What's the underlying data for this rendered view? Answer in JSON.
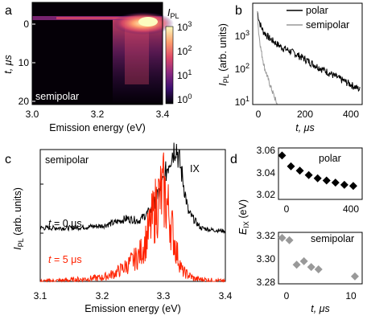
{
  "panels": {
    "a": {
      "letter": "a",
      "annotation": "semipolar",
      "xlabel": "Emission energy (eV)",
      "ylabel": "t, μs",
      "xticks": [
        "3.0",
        "3.2",
        "3.4"
      ],
      "yticks": [
        "0",
        "10",
        "20"
      ],
      "colorbar": {
        "label_main": "I",
        "label_sub": "PL",
        "ticks": [
          {
            "base": "10",
            "exp": "3"
          },
          {
            "base": "10",
            "exp": "2"
          },
          {
            "base": "10",
            "exp": "1"
          },
          {
            "base": "10",
            "exp": "0"
          }
        ],
        "colors": [
          "#000004",
          "#3b0f70",
          "#8c2981",
          "#de4968",
          "#fe9f6d",
          "#fcfdbf"
        ]
      }
    },
    "b": {
      "letter": "b",
      "legend": [
        {
          "label": "polar",
          "color": "#000000"
        },
        {
          "label": "semipolar",
          "color": "#999999"
        }
      ],
      "xlabel": "t, μs",
      "ylabel_main": "I",
      "ylabel_sub": "PL",
      "ylabel_rest": " (arb. units)",
      "xticks": [
        "0",
        "200",
        "400"
      ],
      "yticks": [
        {
          "base": "10",
          "exp": "3"
        },
        {
          "base": "10",
          "exp": "2"
        },
        {
          "base": "10",
          "exp": "1"
        }
      ]
    },
    "c": {
      "letter": "c",
      "annotation": "semipolar",
      "peak_label": "IX",
      "curve_labels": [
        {
          "italic": "t",
          "rest": " = 0 μs",
          "color": "#000000"
        },
        {
          "italic": "t",
          "rest": " = 5 μs",
          "color": "#ff2200"
        }
      ],
      "xlabel": "Emission energy (eV)",
      "ylabel_main": "I",
      "ylabel_sub": "PL",
      "ylabel_rest": " (arb. units)",
      "xticks": [
        "3.1",
        "3.2",
        "3.3",
        "3.4"
      ]
    },
    "d": {
      "letter": "d",
      "top_label": "polar",
      "bottom_label": "semipolar",
      "ylabel_main": "E",
      "ylabel_sub": "IX",
      "ylabel_rest": " (eV)",
      "top_yticks": [
        "3.06",
        "3.04",
        "3.02"
      ],
      "top_xticks": [
        "0",
        "400"
      ],
      "bottom_yticks": [
        "3.32",
        "3.30",
        "3.28"
      ],
      "bottom_xticks": [
        "0",
        "10"
      ],
      "xlabel": "t, μs"
    }
  },
  "chart_data": [
    {
      "type": "heatmap",
      "panel": "a",
      "xlabel": "Emission energy (eV)",
      "ylabel": "t, μs",
      "xlim": [
        3.0,
        3.4
      ],
      "ylim": [
        20,
        -2
      ],
      "colorbar_range": [
        1,
        1000
      ],
      "log_color_scale": true,
      "features": {
        "peak_energy_eV": 3.32,
        "peak_time_us": 0
      }
    },
    {
      "type": "line",
      "panel": "b",
      "xlabel": "t, μs",
      "ylabel": "I_PL (arb. units)",
      "log_y": true,
      "xlim": [
        -20,
        450
      ],
      "ylim": [
        10,
        5000
      ],
      "series": [
        {
          "name": "polar",
          "color": "#000000",
          "x": [
            0,
            10,
            25,
            50,
            100,
            150,
            200,
            250,
            300,
            350,
            400,
            440
          ],
          "y": [
            3000,
            1500,
            900,
            600,
            350,
            250,
            170,
            110,
            75,
            50,
            35,
            25
          ]
        },
        {
          "name": "semipolar",
          "color": "#999999",
          "x": [
            0,
            5,
            15,
            30,
            50,
            70,
            85
          ],
          "y": [
            3000,
            900,
            300,
            100,
            40,
            18,
            10
          ]
        }
      ]
    },
    {
      "type": "line",
      "panel": "c",
      "xlabel": "Emission energy (eV)",
      "ylabel": "I_PL (arb. units)",
      "xlim": [
        3.1,
        3.4
      ],
      "series": [
        {
          "name": "t = 0 μs",
          "color": "#000000",
          "x": [
            3.1,
            3.15,
            3.2,
            3.22,
            3.24,
            3.26,
            3.28,
            3.3,
            3.31,
            3.32,
            3.33,
            3.34,
            3.36,
            3.38,
            3.4
          ],
          "y": [
            0.05,
            0.05,
            0.07,
            0.1,
            0.14,
            0.12,
            0.22,
            0.5,
            0.72,
            0.85,
            0.55,
            0.2,
            0.05,
            0.03,
            0.02
          ]
        },
        {
          "name": "t = 5 μs",
          "color": "#ff2200",
          "x": [
            3.1,
            3.15,
            3.2,
            3.22,
            3.24,
            3.26,
            3.27,
            3.28,
            3.29,
            3.3,
            3.31,
            3.32,
            3.33,
            3.35,
            3.4
          ],
          "y": [
            0.0,
            0.01,
            0.03,
            0.06,
            0.12,
            0.2,
            0.3,
            0.45,
            0.62,
            0.7,
            0.5,
            0.25,
            0.08,
            0.02,
            0.0
          ]
        }
      ]
    },
    {
      "type": "scatter",
      "panel": "d-top",
      "label": "polar",
      "xlim": [
        -20,
        450
      ],
      "ylim": [
        3.02,
        3.06
      ],
      "series": [
        {
          "name": "polar",
          "color": "#000000",
          "x": [
            0,
            50,
            100,
            150,
            200,
            250,
            300,
            350,
            400
          ],
          "y": [
            3.056,
            3.046,
            3.042,
            3.038,
            3.035,
            3.033,
            3.031,
            3.029,
            3.028
          ]
        }
      ]
    },
    {
      "type": "scatter",
      "panel": "d-bottom",
      "label": "semipolar",
      "xlim": [
        -0.5,
        11
      ],
      "ylim": [
        3.28,
        3.32
      ],
      "series": [
        {
          "name": "semipolar",
          "color": "#999999",
          "x": [
            0,
            1,
            2,
            3,
            4,
            5,
            10
          ],
          "y": [
            3.318,
            3.316,
            3.295,
            3.298,
            3.293,
            3.291,
            3.285
          ]
        }
      ]
    }
  ]
}
